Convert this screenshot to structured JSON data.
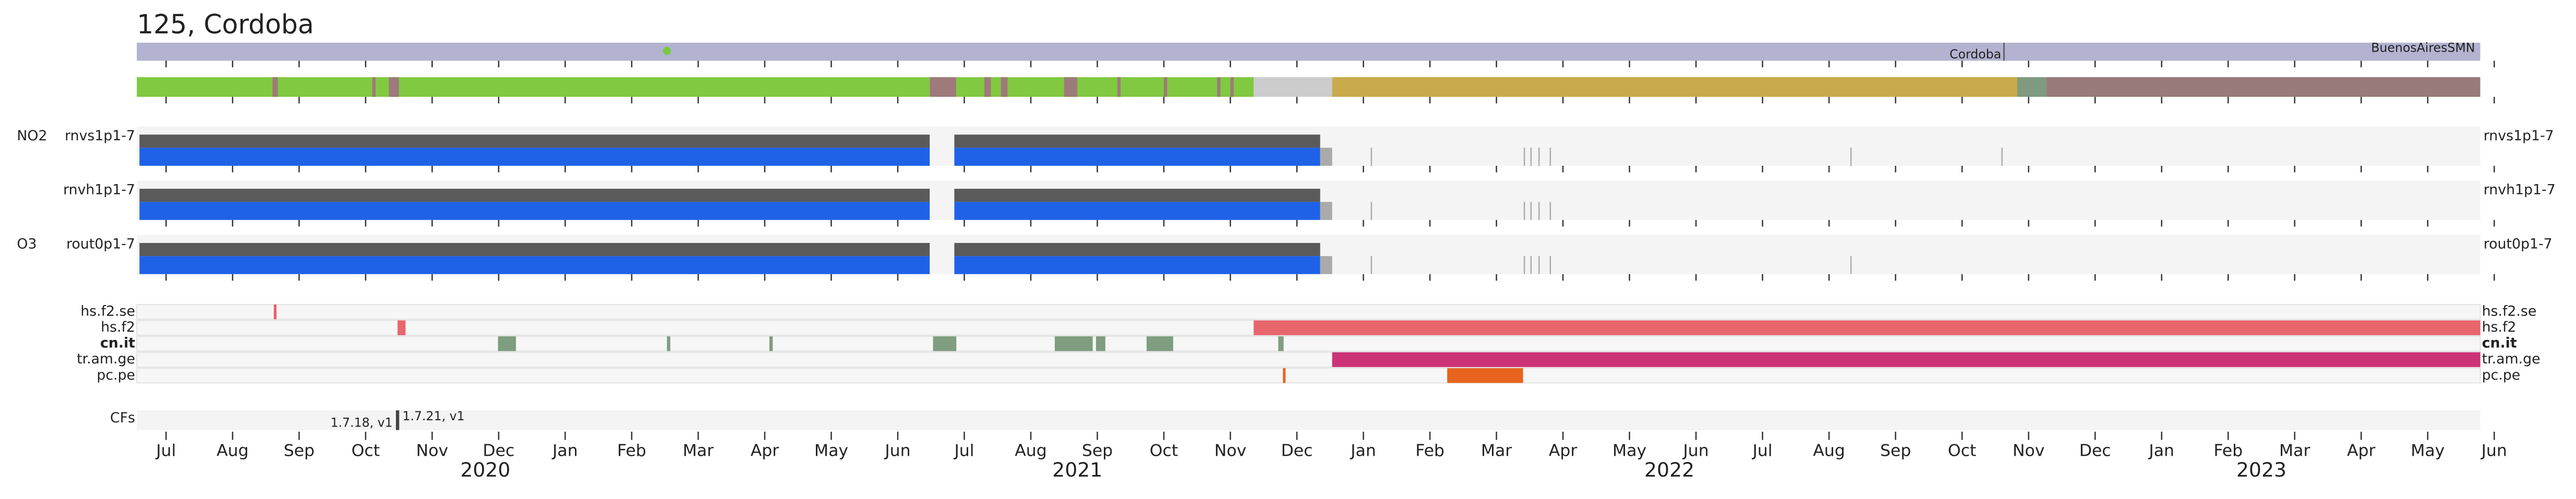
{
  "chart_data": {
    "type": "timeline",
    "title": "125, Cordoba",
    "xlim": [
      0.56,
      35.79
    ],
    "xticks": [
      {
        "value": 1,
        "label": "Jul"
      },
      {
        "value": 2,
        "label": "Aug"
      },
      {
        "value": 3,
        "label": "Sep"
      },
      {
        "value": 4,
        "label": "Oct"
      },
      {
        "value": 5,
        "label": "Nov"
      },
      {
        "value": 6,
        "label": "Dec"
      },
      {
        "value": 7,
        "label": "Jan"
      },
      {
        "value": 8,
        "label": "Feb"
      },
      {
        "value": 9,
        "label": "Mar"
      },
      {
        "value": 10,
        "label": "Apr"
      },
      {
        "value": 11,
        "label": "May"
      },
      {
        "value": 12,
        "label": "Jun"
      },
      {
        "value": 13,
        "label": "Jul"
      },
      {
        "value": 14,
        "label": "Aug"
      },
      {
        "value": 15,
        "label": "Sep"
      },
      {
        "value": 16,
        "label": "Oct"
      },
      {
        "value": 17,
        "label": "Nov"
      },
      {
        "value": 18,
        "label": "Dec"
      },
      {
        "value": 19,
        "label": "Jan"
      },
      {
        "value": 20,
        "label": "Feb"
      },
      {
        "value": 21,
        "label": "Mar"
      },
      {
        "value": 22,
        "label": "Apr"
      },
      {
        "value": 23,
        "label": "May"
      },
      {
        "value": 24,
        "label": "Jun"
      },
      {
        "value": 25,
        "label": "Jul"
      },
      {
        "value": 26,
        "label": "Aug"
      },
      {
        "value": 27,
        "label": "Sep"
      },
      {
        "value": 28,
        "label": "Oct"
      },
      {
        "value": 29,
        "label": "Nov"
      },
      {
        "value": 30,
        "label": "Dec"
      },
      {
        "value": 31,
        "label": "Jan"
      },
      {
        "value": 32,
        "label": "Feb"
      },
      {
        "value": 33,
        "label": "Mar"
      },
      {
        "value": 34,
        "label": "Apr"
      },
      {
        "value": 35,
        "label": "May"
      },
      {
        "value": 36,
        "label": "Jun"
      }
    ],
    "years": [
      {
        "value": 5.8,
        "label": "2020"
      },
      {
        "value": 14.7,
        "label": "2021"
      },
      {
        "value": 23.6,
        "label": "2022"
      },
      {
        "value": 32.5,
        "label": "2023"
      }
    ],
    "station_bar": {
      "color": "#b3b3d1",
      "marker": {
        "value": 8.53,
        "color": "#7ac943"
      },
      "divider": 28.63,
      "annotations": [
        {
          "value": 28.2,
          "label": "Cordoba"
        },
        {
          "value": 34.93,
          "label": "BuenosAiresSMN"
        }
      ]
    },
    "status_bar": {
      "segments": [
        {
          "start": 0.56,
          "end": 12.48,
          "color": "#80c940"
        },
        {
          "start": 2.6,
          "end": 2.68,
          "color": "#9e7a7a"
        },
        {
          "start": 4.1,
          "end": 4.15,
          "color": "#9e7a7a"
        },
        {
          "start": 4.35,
          "end": 4.5,
          "color": "#9e7a7a"
        },
        {
          "start": 12.48,
          "end": 12.88,
          "color": "#9e7a7a"
        },
        {
          "start": 12.88,
          "end": 17.35,
          "color": "#80c940"
        },
        {
          "start": 13.3,
          "end": 13.4,
          "color": "#9e7a7a"
        },
        {
          "start": 13.55,
          "end": 13.65,
          "color": "#9e7a7a"
        },
        {
          "start": 14.5,
          "end": 14.7,
          "color": "#9e7a7a"
        },
        {
          "start": 15.3,
          "end": 15.35,
          "color": "#9e7a7a"
        },
        {
          "start": 16.0,
          "end": 16.05,
          "color": "#9e7a7a"
        },
        {
          "start": 16.8,
          "end": 16.85,
          "color": "#9e7a7a"
        },
        {
          "start": 17.0,
          "end": 17.05,
          "color": "#9e7a7a"
        },
        {
          "start": 17.35,
          "end": 18.53,
          "color": "#cccccc"
        },
        {
          "start": 18.53,
          "end": 28.83,
          "color": "#c9aa4c"
        },
        {
          "start": 28.83,
          "end": 29.27,
          "color": "#7f9a7f"
        },
        {
          "start": 29.27,
          "end": 35.79,
          "color": "#987a7a"
        }
      ]
    },
    "data_rows": [
      {
        "species": "NO2",
        "name": "rnvs1p1-7",
        "coverage": [
          [
            0.6,
            12.48
          ],
          [
            12.85,
            18.35
          ]
        ],
        "partial": [
          [
            18.35,
            18.53
          ]
        ],
        "ticks": [
          19.12,
          21.42,
          21.52,
          21.64,
          21.81,
          26.33,
          28.6
        ]
      },
      {
        "name": "rnvh1p1-7",
        "coverage": [
          [
            0.6,
            12.48
          ],
          [
            12.85,
            18.35
          ]
        ],
        "partial": [
          [
            18.35,
            18.53
          ]
        ],
        "ticks": [
          19.12,
          21.42,
          21.52,
          21.64,
          21.81
        ]
      },
      {
        "species": "O3",
        "name": "rout0p1-7",
        "coverage": [
          [
            0.6,
            12.48
          ],
          [
            12.85,
            18.35
          ]
        ],
        "partial": [
          [
            18.35,
            18.53
          ]
        ],
        "ticks": [
          19.12,
          21.42,
          21.52,
          21.64,
          21.81,
          26.33
        ]
      }
    ],
    "flag_rows": [
      {
        "name": "hs.f2.se",
        "segments": [
          {
            "start": 2.62,
            "end": 2.66,
            "color": "#e8606a"
          }
        ]
      },
      {
        "name": "hs.f2",
        "segments": [
          {
            "start": 4.48,
            "end": 4.6,
            "color": "#e8666e"
          },
          {
            "start": 17.35,
            "end": 35.79,
            "color": "#e8666e"
          }
        ]
      },
      {
        "name": "cn.it",
        "bold": true,
        "segments": [
          {
            "start": 5.99,
            "end": 6.26,
            "color": "#7f9e7f"
          },
          {
            "start": 8.53,
            "end": 8.58,
            "color": "#7f9e7f"
          },
          {
            "start": 10.07,
            "end": 10.12,
            "color": "#7f9e7f"
          },
          {
            "start": 12.53,
            "end": 12.88,
            "color": "#7f9e7f"
          },
          {
            "start": 14.36,
            "end": 14.93,
            "color": "#7f9e7f"
          },
          {
            "start": 14.98,
            "end": 15.12,
            "color": "#7f9e7f"
          },
          {
            "start": 15.74,
            "end": 16.14,
            "color": "#7f9e7f"
          },
          {
            "start": 17.72,
            "end": 17.8,
            "color": "#7f9e7f"
          }
        ]
      },
      {
        "name": "tr.am.ge",
        "segments": [
          {
            "start": 18.53,
            "end": 35.79,
            "color": "#cc3377"
          }
        ]
      },
      {
        "name": "pc.pe",
        "segments": [
          {
            "start": 17.79,
            "end": 17.83,
            "color": "#e8641e"
          },
          {
            "start": 20.26,
            "end": 21.4,
            "color": "#e8641e"
          }
        ]
      }
    ],
    "cfs": {
      "label": "CFs",
      "markers": [
        {
          "value": 4.48,
          "label_left": "1.7.18, v1",
          "label_right": "1.7.21, v1"
        }
      ]
    }
  }
}
